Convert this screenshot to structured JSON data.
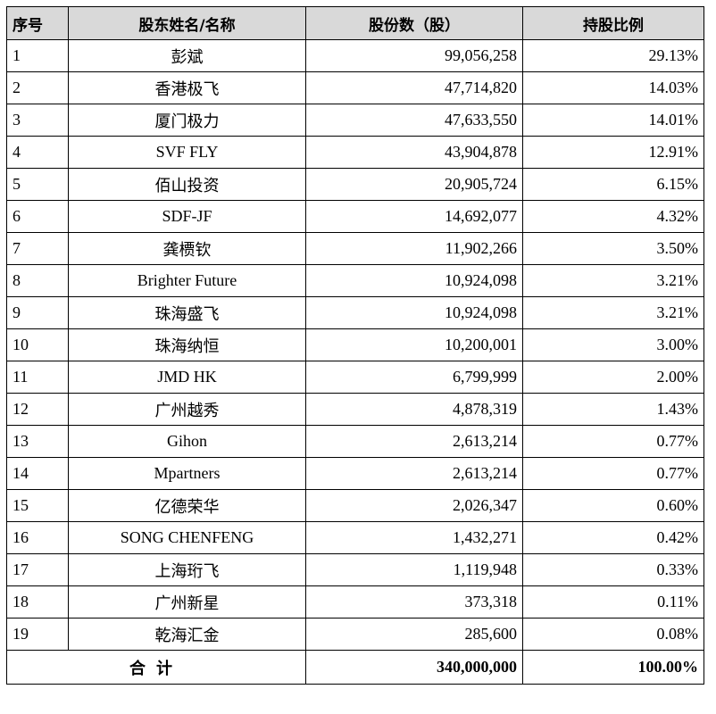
{
  "table": {
    "headers": {
      "index": "序号",
      "name": "股东姓名/名称",
      "shares": "股份数（股）",
      "percent": "持股比例"
    },
    "rows": [
      {
        "index": "1",
        "name": "彭斌",
        "shares": "99,056,258",
        "percent": "29.13%"
      },
      {
        "index": "2",
        "name": "香港极飞",
        "shares": "47,714,820",
        "percent": "14.03%"
      },
      {
        "index": "3",
        "name": "厦门极力",
        "shares": "47,633,550",
        "percent": "14.01%"
      },
      {
        "index": "4",
        "name": "SVF FLY",
        "shares": "43,904,878",
        "percent": "12.91%"
      },
      {
        "index": "5",
        "name": "佰山投资",
        "shares": "20,905,724",
        "percent": "6.15%"
      },
      {
        "index": "6",
        "name": "SDF-JF",
        "shares": "14,692,077",
        "percent": "4.32%"
      },
      {
        "index": "7",
        "name": "龚槚钦",
        "shares": "11,902,266",
        "percent": "3.50%"
      },
      {
        "index": "8",
        "name": "Brighter Future",
        "shares": "10,924,098",
        "percent": "3.21%"
      },
      {
        "index": "9",
        "name": "珠海盛飞",
        "shares": "10,924,098",
        "percent": "3.21%"
      },
      {
        "index": "10",
        "name": "珠海纳恒",
        "shares": "10,200,001",
        "percent": "3.00%"
      },
      {
        "index": "11",
        "name": "JMD HK",
        "shares": "6,799,999",
        "percent": "2.00%"
      },
      {
        "index": "12",
        "name": "广州越秀",
        "shares": "4,878,319",
        "percent": "1.43%"
      },
      {
        "index": "13",
        "name": "Gihon",
        "shares": "2,613,214",
        "percent": "0.77%"
      },
      {
        "index": "14",
        "name": "Mpartners",
        "shares": "2,613,214",
        "percent": "0.77%"
      },
      {
        "index": "15",
        "name": "亿德荣华",
        "shares": "2,026,347",
        "percent": "0.60%"
      },
      {
        "index": "16",
        "name": "SONG CHENFENG",
        "shares": "1,432,271",
        "percent": "0.42%"
      },
      {
        "index": "17",
        "name": "上海珩飞",
        "shares": "1,119,948",
        "percent": "0.33%"
      },
      {
        "index": "18",
        "name": "广州新星",
        "shares": "373,318",
        "percent": "0.11%"
      },
      {
        "index": "19",
        "name": "乾海汇金",
        "shares": "285,600",
        "percent": "0.08%"
      }
    ],
    "total": {
      "label": "合计",
      "shares": "340,000,000",
      "percent": "100.00%"
    }
  }
}
